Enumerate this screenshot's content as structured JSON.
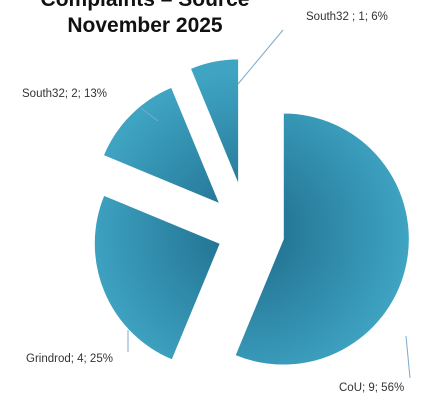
{
  "title_lines": [
    "Complaints – Source",
    "November 2025"
  ],
  "colors": {
    "slice_dark": "#1d6b8a",
    "slice_light": "#3fa3c2",
    "leader_line": "#7aa9c9",
    "label_text": "#333333"
  },
  "chart_data": {
    "type": "pie",
    "exploded": true,
    "slices": [
      {
        "name": "CoU",
        "value": 9,
        "percent": 56,
        "label": "CoU; 9; 56%"
      },
      {
        "name": "Grindrod",
        "value": 4,
        "percent": 25,
        "label": "Grindrod; 4; 25%"
      },
      {
        "name": "South32",
        "value": 2,
        "percent": 13,
        "label": "South32; 2; 13%"
      },
      {
        "name": "South32",
        "value": 1,
        "percent": 6,
        "label": "South32 ; 1; 6%"
      }
    ]
  }
}
